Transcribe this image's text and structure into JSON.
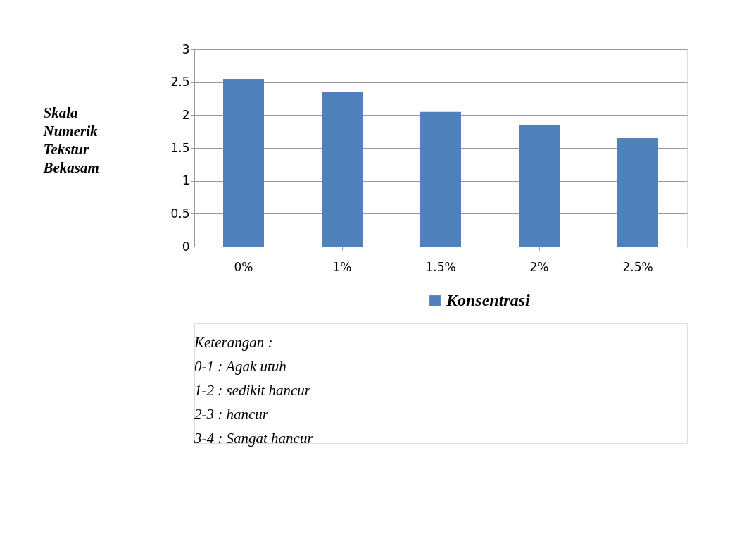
{
  "chart_data": {
    "type": "bar",
    "ylabel": "Skala\nNumerik\nTekstur\nBekasam",
    "categories": [
      "0%",
      "1%",
      "1.5%",
      "2%",
      "2.5%"
    ],
    "series": [
      {
        "name": "Konsentrasi",
        "color": "#4f81bd",
        "values": [
          2.55,
          2.35,
          2.05,
          1.85,
          1.65
        ]
      }
    ],
    "ylim": [
      0,
      3
    ],
    "yticks": [
      0,
      0.5,
      1,
      1.5,
      2,
      2.5,
      3
    ],
    "grid": "y",
    "legend": "bottom",
    "annotations": [
      "Keterangan :",
      "0-1 : Agak utuh",
      "1-2 : sedikit hancur",
      "2-3 : hancur",
      "3-4 : Sangat hancur"
    ]
  }
}
